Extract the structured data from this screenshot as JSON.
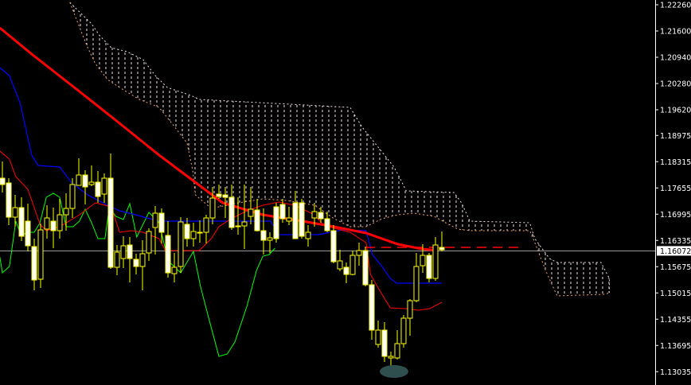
{
  "chart_data": {
    "type": "candlestick",
    "title": "",
    "colors": {
      "background": "#000000",
      "candle_outline": "#ffff00",
      "bear_fill": "#ffffff",
      "bull_fill": "#000000",
      "moving_average": "#ff0000",
      "tenkan_sen": "#ff0000",
      "kijun_sen": "#0000ff",
      "chikou_span": "#00ff00",
      "cloud_hatch": "#f0e0ea",
      "cloud_edge_lower": "#f4a460",
      "current_price_line": "#a0a0a0",
      "marker_blob": "#2f4f4f"
    },
    "y_axis": {
      "ticks": [
        "1.22260",
        "1.21600",
        "1.20940",
        "1.20280",
        "1.19620",
        "1.18975",
        "1.18315",
        "1.17655",
        "1.16995",
        "1.16335",
        "1.15675",
        "1.15015",
        "1.14355",
        "1.13695",
        "1.13035"
      ],
      "current_price": "1.16072",
      "position": "right"
    },
    "grid": false,
    "candles_ohlc": [
      [
        1.179,
        1.1832,
        1.1754,
        1.1774
      ],
      [
        1.1778,
        1.179,
        1.1672,
        1.1692
      ],
      [
        1.1692,
        1.1748,
        1.1668,
        1.1716
      ],
      [
        1.1716,
        1.1742,
        1.1632,
        1.1644
      ],
      [
        1.1682,
        1.1726,
        1.1606,
        1.162
      ],
      [
        1.1618,
        1.1638,
        1.1508,
        1.1534
      ],
      [
        1.1536,
        1.1676,
        1.1514,
        1.166
      ],
      [
        1.1662,
        1.1722,
        1.1638,
        1.169
      ],
      [
        1.1682,
        1.1716,
        1.1614,
        1.1658
      ],
      [
        1.1658,
        1.1738,
        1.1638,
        1.1698
      ],
      [
        1.1698,
        1.1752,
        1.1658,
        1.1714
      ],
      [
        1.1714,
        1.179,
        1.169,
        1.1774
      ],
      [
        1.1772,
        1.184,
        1.1772,
        1.1798
      ],
      [
        1.1798,
        1.181,
        1.1724,
        1.1768
      ],
      [
        1.1774,
        1.1822,
        1.177,
        1.178
      ],
      [
        1.178,
        1.1808,
        1.1728,
        1.1744
      ],
      [
        1.175,
        1.1802,
        1.1728,
        1.179
      ],
      [
        1.179,
        1.1852,
        1.1562,
        1.1566
      ],
      [
        1.1566,
        1.1622,
        1.1546,
        1.1604
      ],
      [
        1.1588,
        1.1644,
        1.1564,
        1.162
      ],
      [
        1.1622,
        1.1642,
        1.1528,
        1.1588
      ],
      [
        1.1586,
        1.16,
        1.1548,
        1.1568
      ],
      [
        1.1568,
        1.1634,
        1.1508,
        1.16
      ],
      [
        1.1602,
        1.1664,
        1.1582,
        1.1656
      ],
      [
        1.1666,
        1.172,
        1.1598,
        1.1702
      ],
      [
        1.1702,
        1.1714,
        1.1626,
        1.1654
      ],
      [
        1.1646,
        1.1682,
        1.154,
        1.1552
      ],
      [
        1.155,
        1.1602,
        1.1528,
        1.1566
      ],
      [
        1.1568,
        1.1692,
        1.1552,
        1.168
      ],
      [
        1.1674,
        1.169,
        1.1618,
        1.1638
      ],
      [
        1.1638,
        1.1678,
        1.1618,
        1.1656
      ],
      [
        1.1654,
        1.1684,
        1.1628,
        1.1654
      ],
      [
        1.1654,
        1.1698,
        1.1626,
        1.169
      ],
      [
        1.169,
        1.1768,
        1.1674,
        1.174
      ],
      [
        1.175,
        1.1774,
        1.1738,
        1.1744
      ],
      [
        1.1748,
        1.1768,
        1.169,
        1.1742
      ],
      [
        1.1742,
        1.1774,
        1.166,
        1.1666
      ],
      [
        1.167,
        1.1742,
        1.1648,
        1.167
      ],
      [
        1.167,
        1.1774,
        1.1612,
        1.168
      ],
      [
        1.1694,
        1.1768,
        1.1674,
        1.1712
      ],
      [
        1.171,
        1.1738,
        1.1656,
        1.1658
      ],
      [
        1.1658,
        1.1714,
        1.1598,
        1.1634
      ],
      [
        1.1634,
        1.1654,
        1.1602,
        1.164
      ],
      [
        1.1718,
        1.1728,
        1.1628,
        1.1638
      ],
      [
        1.1724,
        1.1738,
        1.1678,
        1.1688
      ],
      [
        1.1682,
        1.1718,
        1.1672,
        1.169
      ],
      [
        1.1728,
        1.1758,
        1.1638,
        1.1638
      ],
      [
        1.1728,
        1.1738,
        1.1638,
        1.1644
      ],
      [
        1.1638,
        1.1672,
        1.1618,
        1.1654
      ],
      [
        1.169,
        1.1728,
        1.1668,
        1.1706
      ],
      [
        1.1704,
        1.1718,
        1.1678,
        1.1688
      ],
      [
        1.1688,
        1.1706,
        1.1654,
        1.1658
      ],
      [
        1.1658,
        1.1672,
        1.1576,
        1.158
      ],
      [
        1.1562,
        1.161,
        1.1556,
        1.1582
      ],
      [
        1.1566,
        1.1578,
        1.1526,
        1.1548
      ],
      [
        1.1548,
        1.1608,
        1.1546,
        1.1596
      ],
      [
        1.1596,
        1.1628,
        1.157,
        1.1608
      ],
      [
        1.1608,
        1.1618,
        1.1518,
        1.1522
      ],
      [
        1.1522,
        1.1534,
        1.1384,
        1.1408
      ],
      [
        1.1372,
        1.1432,
        1.1364,
        1.1408
      ],
      [
        1.1408,
        1.1428,
        1.1328,
        1.1342
      ],
      [
        1.1338,
        1.1354,
        1.1298,
        1.1342
      ],
      [
        1.1338,
        1.1408,
        1.1334,
        1.1374
      ],
      [
        1.1374,
        1.1446,
        1.1364,
        1.1438
      ],
      [
        1.1438,
        1.1486,
        1.1394,
        1.1482
      ],
      [
        1.1482,
        1.1602,
        1.1478,
        1.1568
      ],
      [
        1.157,
        1.1624,
        1.1552,
        1.1596
      ],
      [
        1.1596,
        1.1602,
        1.1528,
        1.1538
      ],
      [
        1.1538,
        1.1642,
        1.1532,
        1.1622
      ],
      [
        1.1616,
        1.1656,
        1.1606,
        1.161
      ]
    ],
    "moving_average": [
      [
        -0.4,
        1.2168
      ],
      [
        4.6,
        1.2102
      ],
      [
        12.1,
        1.2008
      ],
      [
        18.4,
        1.1928
      ],
      [
        24.6,
        1.1848
      ],
      [
        29.6,
        1.1788
      ],
      [
        34.6,
        1.1728
      ],
      [
        40.9,
        1.1698
      ],
      [
        47.1,
        1.1682
      ],
      [
        52.1,
        1.1668
      ],
      [
        57.1,
        1.1652
      ],
      [
        62.1,
        1.1624
      ],
      [
        65.9,
        1.1612
      ],
      [
        68.4,
        1.1608
      ]
    ],
    "moving_average_projection": [
      [
        57,
        1.1616
      ],
      [
        82,
        1.1616
      ]
    ],
    "kijun_sen": [
      [
        -0.4,
        1.2068
      ],
      [
        1.1,
        1.2048
      ],
      [
        2.8,
        1.1978
      ],
      [
        4.6,
        1.1848
      ],
      [
        5.6,
        1.1822
      ],
      [
        9,
        1.1818
      ],
      [
        10.9,
        1.1778
      ],
      [
        13.4,
        1.1748
      ],
      [
        16.5,
        1.1722
      ],
      [
        18.4,
        1.1708
      ],
      [
        20.9,
        1.1698
      ],
      [
        24.6,
        1.1682
      ],
      [
        42.1,
        1.1682
      ],
      [
        43.4,
        1.1648
      ],
      [
        49.6,
        1.1648
      ],
      [
        53.4,
        1.166
      ],
      [
        57.1,
        1.1658
      ],
      [
        58.1,
        1.1598
      ],
      [
        59.6,
        1.1568
      ],
      [
        60.9,
        1.1538
      ],
      [
        61.9,
        1.1526
      ],
      [
        69,
        1.1526
      ]
    ],
    "tenkan_sen": [
      [
        -0.4,
        1.1858
      ],
      [
        1.1,
        1.1838
      ],
      [
        2.1,
        1.1794
      ],
      [
        4,
        1.1762
      ],
      [
        5.9,
        1.1674
      ],
      [
        6.9,
        1.1658
      ],
      [
        9,
        1.1668
      ],
      [
        12.1,
        1.1698
      ],
      [
        14.6,
        1.1728
      ],
      [
        17.1,
        1.1718
      ],
      [
        18.4,
        1.1654
      ],
      [
        20.3,
        1.1658
      ],
      [
        22.1,
        1.1654
      ],
      [
        24.6,
        1.1638
      ],
      [
        25.6,
        1.1608
      ],
      [
        30.9,
        1.1608
      ],
      [
        32.8,
        1.1638
      ],
      [
        34,
        1.1668
      ],
      [
        35.9,
        1.1688
      ],
      [
        38.4,
        1.1708
      ],
      [
        40.9,
        1.1722
      ],
      [
        43.4,
        1.173
      ],
      [
        45.9,
        1.1722
      ],
      [
        49,
        1.1698
      ],
      [
        50.3,
        1.1674
      ],
      [
        52.1,
        1.1664
      ],
      [
        54.6,
        1.1654
      ],
      [
        57.1,
        1.1628
      ],
      [
        57.8,
        1.1548
      ],
      [
        59,
        1.1514
      ],
      [
        60.9,
        1.1464
      ],
      [
        63.4,
        1.1462
      ],
      [
        65.3,
        1.1458
      ],
      [
        67.1,
        1.1462
      ],
      [
        69,
        1.1478
      ]
    ],
    "chikou_span": [
      [
        -0.4,
        1.1592
      ],
      [
        0,
        1.1552
      ],
      [
        1.1,
        1.1568
      ],
      [
        1.5,
        1.1612
      ],
      [
        2.1,
        1.1682
      ],
      [
        3,
        1.1644
      ],
      [
        3.8,
        1.1654
      ],
      [
        5,
        1.1654
      ],
      [
        5.9,
        1.1678
      ],
      [
        6.9,
        1.1742
      ],
      [
        8,
        1.1752
      ],
      [
        9,
        1.1742
      ],
      [
        10,
        1.1668
      ],
      [
        11.1,
        1.1668
      ],
      [
        12.1,
        1.1682
      ],
      [
        13,
        1.1712
      ],
      [
        14,
        1.1678
      ],
      [
        15,
        1.1638
      ],
      [
        16.1,
        1.1638
      ],
      [
        16.8,
        1.1718
      ],
      [
        17.8,
        1.1694
      ],
      [
        19,
        1.1686
      ],
      [
        20,
        1.1726
      ],
      [
        21.1,
        1.1642
      ],
      [
        23,
        1.1704
      ],
      [
        24.6,
        1.1678
      ],
      [
        25.5,
        1.1618
      ],
      [
        26.3,
        1.1578
      ],
      [
        28,
        1.1552
      ],
      [
        30,
        1.1606
      ],
      [
        31.1,
        1.1518
      ],
      [
        32.4,
        1.1438
      ],
      [
        34,
        1.1342
      ],
      [
        35.3,
        1.1348
      ],
      [
        36.5,
        1.1378
      ],
      [
        38.4,
        1.1468
      ],
      [
        39.9,
        1.1558
      ],
      [
        40.9,
        1.1594
      ],
      [
        41.9,
        1.1598
      ],
      [
        42.8,
        1.1614
      ]
    ],
    "cloud_upper": [
      [
        10.6,
        1.2232
      ],
      [
        12.1,
        1.2208
      ],
      [
        14,
        1.2178
      ],
      [
        15.3,
        1.2148
      ],
      [
        17.1,
        1.2118
      ],
      [
        19.6,
        1.2108
      ],
      [
        22.1,
        1.2088
      ],
      [
        24,
        1.2048
      ],
      [
        25.9,
        1.2018
      ],
      [
        29.6,
        1.1998
      ],
      [
        30.9,
        1.1988
      ],
      [
        54.6,
        1.1968
      ],
      [
        56.5,
        1.1918
      ],
      [
        59,
        1.1868
      ],
      [
        61.5,
        1.1818
      ],
      [
        62.8,
        1.1778
      ],
      [
        63.4,
        1.1758
      ],
      [
        70.9,
        1.1754
      ],
      [
        72.1,
        1.1728
      ],
      [
        73.4,
        1.1682
      ],
      [
        82.8,
        1.1678
      ],
      [
        83.6,
        1.1638
      ],
      [
        85.9,
        1.1588
      ],
      [
        87.1,
        1.1578
      ],
      [
        94,
        1.1578
      ],
      [
        95.3,
        1.1538
      ],
      [
        95.3,
        1.1502
      ]
    ],
    "cloud_lower": [
      [
        10.6,
        1.2232
      ],
      [
        11.9,
        1.2178
      ],
      [
        13.4,
        1.2118
      ],
      [
        14.6,
        1.2078
      ],
      [
        16.5,
        1.2038
      ],
      [
        18.4,
        1.2018
      ],
      [
        21.5,
        1.1988
      ],
      [
        24.6,
        1.1968
      ],
      [
        27.1,
        1.1918
      ],
      [
        29,
        1.1878
      ],
      [
        29.9,
        1.1808
      ],
      [
        30.3,
        1.1748
      ],
      [
        32.8,
        1.1714
      ],
      [
        37.1,
        1.1728
      ],
      [
        40.9,
        1.1738
      ],
      [
        44.6,
        1.1734
      ],
      [
        49,
        1.1722
      ],
      [
        52.1,
        1.1688
      ],
      [
        54.6,
        1.1668
      ],
      [
        57.1,
        1.1668
      ],
      [
        59.6,
        1.1688
      ],
      [
        62.1,
        1.1698
      ],
      [
        64.6,
        1.1702
      ],
      [
        67.8,
        1.1694
      ],
      [
        69.6,
        1.1678
      ],
      [
        71.5,
        1.1662
      ],
      [
        73.4,
        1.1658
      ],
      [
        82.8,
        1.1658
      ],
      [
        83.6,
        1.1628
      ],
      [
        85.3,
        1.1558
      ],
      [
        87.1,
        1.1494
      ],
      [
        94.6,
        1.1498
      ],
      [
        95.3,
        1.1502
      ]
    ]
  }
}
